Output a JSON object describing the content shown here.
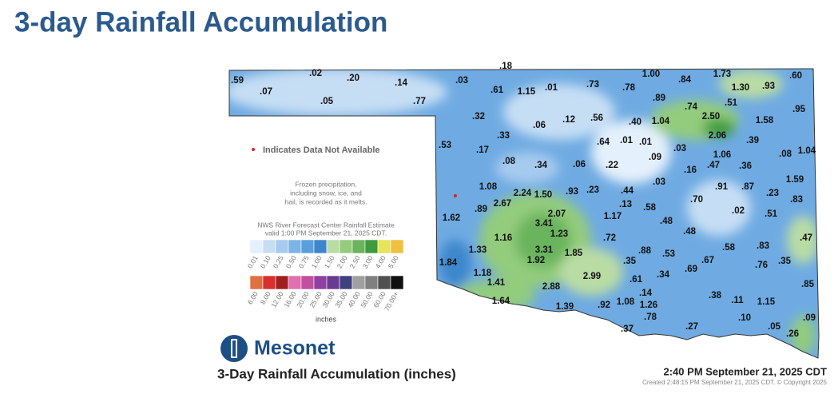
{
  "header": {
    "title": "3-day Rainfall Accumulation"
  },
  "map": {
    "stations": [
      ".59",
      ".07",
      ".02",
      ".05",
      ".20",
      ".14",
      ".77",
      ".18",
      ".03",
      ".61",
      "1.15",
      ".01",
      ".73",
      ".78",
      "1.00",
      ".84",
      "1.73",
      ".60",
      "1.30",
      ".93",
      ".89",
      ".51",
      ".95",
      ".74",
      ".32",
      ".06",
      ".12",
      ".56",
      ".40",
      "1.04",
      "2.50",
      "1.58",
      ".53",
      ".33",
      ".64",
      ".01",
      ".01",
      "2.06",
      ".39",
      ".17",
      ".09",
      ".03",
      "1.06",
      ".08",
      "1.04",
      ".08",
      ".34",
      ".06",
      ".22",
      ".16",
      ".47",
      ".36",
      "1.59",
      ".03",
      "1.08",
      "2.24",
      "1.50",
      ".93",
      ".23",
      ".44",
      ".91",
      ".87",
      ".23",
      ".83",
      ".89",
      "2.67",
      ".13",
      ".58",
      ".70",
      "1.62",
      "2.07",
      "1.17",
      ".48",
      ".02",
      ".51",
      "3.41",
      "1.16",
      "1.23",
      ".72",
      ".48",
      ".47",
      "1.33",
      "3.31",
      ".88",
      ".53",
      ".58",
      ".83",
      "1.84",
      "1.92",
      "1.85",
      ".35",
      ".67",
      ".76",
      ".35",
      "1.18",
      ".69",
      ".34",
      "2.99",
      ".61",
      "1.41",
      "2.88",
      ".85",
      ".14",
      ".38",
      ".11",
      "1.15",
      "1.64",
      "1.39",
      ".92",
      "1.08",
      "1.26",
      ".78",
      ".10",
      ".09",
      ".05",
      ".37",
      ".27",
      ".26"
    ]
  },
  "legend": {
    "not_available": "Indicates Data Not Available",
    "frozen_note": [
      "Frozen precipitation,",
      "including snow, ice, and",
      "hail, is recorded as it melts."
    ],
    "estimate_note": [
      "NWS River Forecast Center Rainfall Estimate",
      "valid 1:00 PM September 21, 2025 CDT."
    ],
    "rain_scale": [
      {
        "label": "0.01",
        "color": "#e4f0fb"
      },
      {
        "label": "0.10",
        "color": "#c6def4"
      },
      {
        "label": "0.25",
        "color": "#a6cbee"
      },
      {
        "label": "0.50",
        "color": "#7db4e6"
      },
      {
        "label": "0.75",
        "color": "#5a9fdc"
      },
      {
        "label": "1.00",
        "color": "#3d86cc"
      },
      {
        "label": "1.50",
        "color": "#b9dca4"
      },
      {
        "label": "2.00",
        "color": "#93cc7d"
      },
      {
        "label": "2.50",
        "color": "#6bb45d"
      },
      {
        "label": "3.00",
        "color": "#3f9b3e"
      },
      {
        "label": "4.00",
        "color": "#e6e45a"
      },
      {
        "label": "5.00",
        "color": "#f0c040"
      }
    ],
    "heavy_scale": [
      {
        "label": "6.00",
        "color": "#e07040"
      },
      {
        "label": "8.00",
        "color": "#d83030"
      },
      {
        "label": "12.00",
        "color": "#a02020"
      },
      {
        "label": "16.00",
        "color": "#e070b0"
      },
      {
        "label": "20.00",
        "color": "#c050a0"
      },
      {
        "label": "25.00",
        "color": "#9040a0"
      },
      {
        "label": "30.00",
        "color": "#6a3c90"
      },
      {
        "label": "35.00",
        "color": "#404080"
      },
      {
        "label": "40.00",
        "color": "#a0a0a0"
      },
      {
        "label": "50.00",
        "color": "#808080"
      },
      {
        "label": "60.00",
        "color": "#505050"
      },
      {
        "label": "70.00+",
        "color": "#101010"
      }
    ],
    "units": "inches"
  },
  "footer": {
    "brand": "Mesonet",
    "map_title": "3-Day Rainfall Accumulation (inches)",
    "timestamp": "2:40 PM September 21, 2025 CDT",
    "created": "Created 2:48:15 PM September 21, 2025 CDT. © Copyright 2025"
  }
}
